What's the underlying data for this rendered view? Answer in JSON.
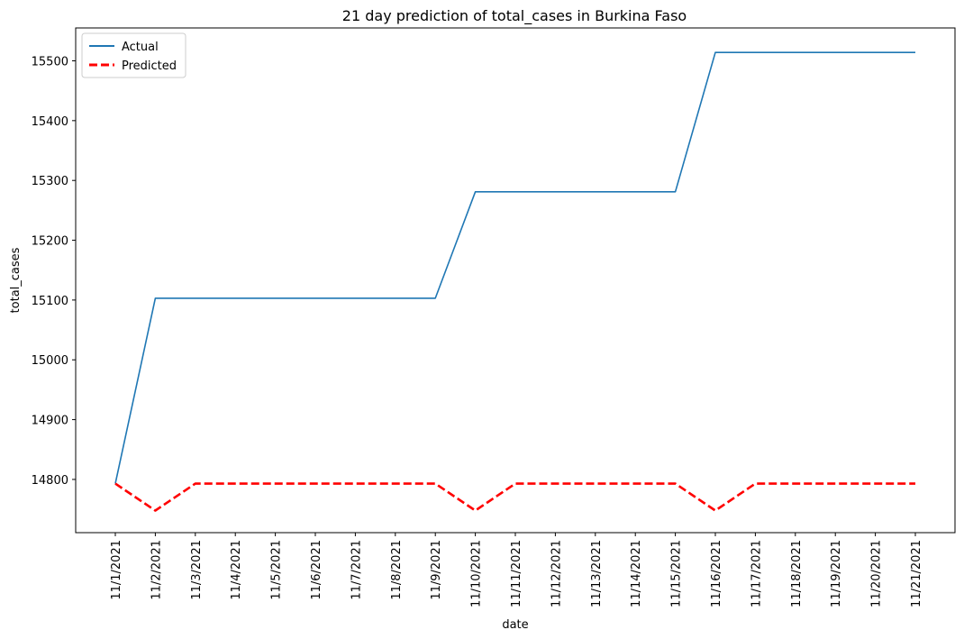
{
  "chart_data": {
    "type": "line",
    "title": "21 day prediction of total_cases in Burkina Faso",
    "xlabel": "date",
    "ylabel": "total_cases",
    "x": [
      "11/1/2021",
      "11/2/2021",
      "11/3/2021",
      "11/4/2021",
      "11/5/2021",
      "11/6/2021",
      "11/7/2021",
      "11/8/2021",
      "11/9/2021",
      "11/10/2021",
      "11/11/2021",
      "11/12/2021",
      "11/13/2021",
      "11/14/2021",
      "11/15/2021",
      "11/16/2021",
      "11/17/2021",
      "11/18/2021",
      "11/19/2021",
      "11/20/2021",
      "11/21/2021"
    ],
    "yticks": [
      14800,
      14900,
      15000,
      15100,
      15200,
      15300,
      15400,
      15500
    ],
    "ylim": [
      14711,
      15555
    ],
    "grid": false,
    "legend_position": "top-left",
    "series": [
      {
        "name": "Actual",
        "color": "#1f77b4",
        "style": "solid",
        "values": [
          14793,
          15103,
          15103,
          15103,
          15103,
          15103,
          15103,
          15103,
          15103,
          15281,
          15281,
          15281,
          15281,
          15281,
          15281,
          15514,
          15514,
          15514,
          15514,
          15514,
          15514
        ]
      },
      {
        "name": "Predicted",
        "color": "#ff0000",
        "style": "dashed",
        "values": [
          14793,
          14748,
          14793,
          14793,
          14793,
          14793,
          14793,
          14793,
          14793,
          14748,
          14793,
          14793,
          14793,
          14793,
          14793,
          14748,
          14793,
          14793,
          14793,
          14793,
          14793
        ]
      }
    ]
  }
}
